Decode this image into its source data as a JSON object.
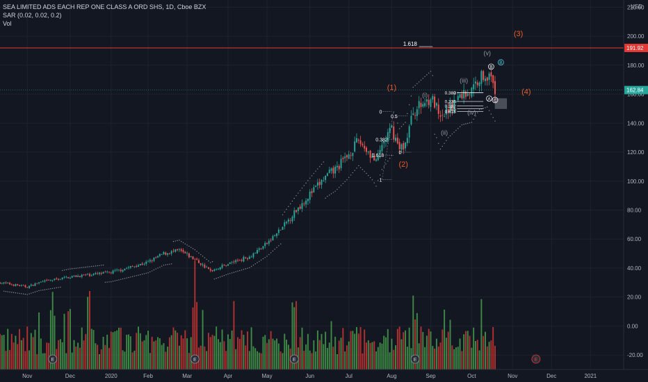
{
  "header": {
    "title": "SEA LIMITED ADS EACH REP ONE CLASS A ORD SHS, 1D, Cboe BZX",
    "indicator_sar": "SAR (0.02, 0.02, 0.2)",
    "indicator_vol": "Vol"
  },
  "colors": {
    "background": "#131722",
    "up": "#26a69a",
    "down": "#ef5350",
    "vol_up": "#4caf50",
    "vol_down": "#e53935",
    "resistance": "#e53935",
    "wave_orange": "#f05a28",
    "wave_gray": "#9598a1",
    "wave_cyan": "#4dd0e1",
    "price_badge": "#26a69a",
    "grid": "#1e222d"
  },
  "chart_data": {
    "type": "candlestick",
    "symbol": "SE",
    "interval": "1D",
    "y_axis": {
      "unit": "USD",
      "ticks": [
        "220.00",
        "200.00",
        "180.00",
        "160.00",
        "140.00",
        "120.00",
        "100.00",
        "80.00",
        "60.00",
        "40.00",
        "20.00",
        "0.00",
        "-20.00"
      ],
      "tick_values": [
        220,
        200,
        180,
        160,
        140,
        120,
        100,
        80,
        60,
        40,
        20,
        0,
        -20
      ],
      "range": [
        -30,
        225
      ]
    },
    "x_axis": {
      "ticks": [
        "Nov",
        "Dec",
        "2020",
        "Feb",
        "Mar",
        "Apr",
        "May",
        "Jun",
        "Jul",
        "Aug",
        "Sep",
        "Oct",
        "Nov",
        "Dec",
        "2021"
      ],
      "tick_index": [
        14,
        36,
        57,
        76,
        96,
        117,
        137,
        159,
        179,
        201,
        221,
        242,
        263,
        283,
        303
      ],
      "range_index": [
        0,
        320
      ]
    },
    "price_path": [
      [
        0,
        30
      ],
      [
        14,
        27
      ],
      [
        20,
        30
      ],
      [
        36,
        34
      ],
      [
        57,
        37
      ],
      [
        76,
        44
      ],
      [
        84,
        50
      ],
      [
        92,
        52
      ],
      [
        100,
        46
      ],
      [
        108,
        38
      ],
      [
        117,
        43
      ],
      [
        128,
        48
      ],
      [
        137,
        57
      ],
      [
        145,
        68
      ],
      [
        152,
        80
      ],
      [
        159,
        91
      ],
      [
        168,
        104
      ],
      [
        172,
        108
      ],
      [
        178,
        117
      ],
      [
        184,
        128
      ],
      [
        188,
        122
      ],
      [
        191,
        117
      ],
      [
        193,
        112
      ],
      [
        196,
        125
      ],
      [
        201,
        136
      ],
      [
        205,
        122
      ],
      [
        208,
        126
      ],
      [
        212,
        148
      ],
      [
        221,
        158
      ],
      [
        224,
        150
      ],
      [
        226,
        141
      ],
      [
        230,
        150
      ],
      [
        237,
        160
      ],
      [
        242,
        162
      ],
      [
        246,
        172
      ],
      [
        250,
        174
      ],
      [
        254,
        163
      ]
    ],
    "last_price": "162.84",
    "last_price_value": 162.84,
    "resistance_level": "191.92",
    "resistance_value": 191.92,
    "annotations": {
      "fib_1618": "1.618",
      "fib_first": [
        {
          "label": "0",
          "y": 148
        },
        {
          "label": "0.5",
          "y": 145
        },
        {
          "label": "0.382",
          "y": 129
        },
        {
          "label": "0.618",
          "y": 118
        },
        {
          "label": "0",
          "y": 120
        },
        {
          "label": "1",
          "y": 101
        }
      ],
      "fib_second": [
        {
          "label": "0",
          "y": 161
        },
        {
          "label": "0.382",
          "y": 161
        },
        {
          "label": "0.236",
          "y": 155
        },
        {
          "label": "0.382",
          "y": 152
        },
        {
          "label": "0.5",
          "y": 150
        },
        {
          "label": "0.618",
          "y": 148
        }
      ],
      "waves_orange": [
        {
          "label": "(1)",
          "index": 201,
          "y": 163
        },
        {
          "label": "(2)",
          "index": 207,
          "y": 110
        },
        {
          "label": "(3)",
          "index": 266,
          "y": 200
        },
        {
          "label": "(4)",
          "index": 270,
          "y": 160
        }
      ],
      "waves_gray": [
        {
          "label": "(i)",
          "index": 218,
          "y": 158
        },
        {
          "label": "(ii)",
          "index": 228,
          "y": 132
        },
        {
          "label": "(iii)",
          "index": 238,
          "y": 168
        },
        {
          "label": "(iv)",
          "index": 242,
          "y": 146
        },
        {
          "label": "(v)",
          "index": 250,
          "y": 187
        }
      ],
      "circles": [
        {
          "label": "B",
          "index": 252,
          "y": 179
        },
        {
          "label": "A",
          "index": 251,
          "y": 157
        },
        {
          "label": "C",
          "index": 254,
          "y": 156
        },
        {
          "label": "B",
          "index": 257,
          "y": 182
        }
      ],
      "earnings_marker": "E",
      "earnings_index": [
        27,
        100,
        151,
        213,
        275
      ]
    },
    "grid": true,
    "legend": "top-left"
  }
}
